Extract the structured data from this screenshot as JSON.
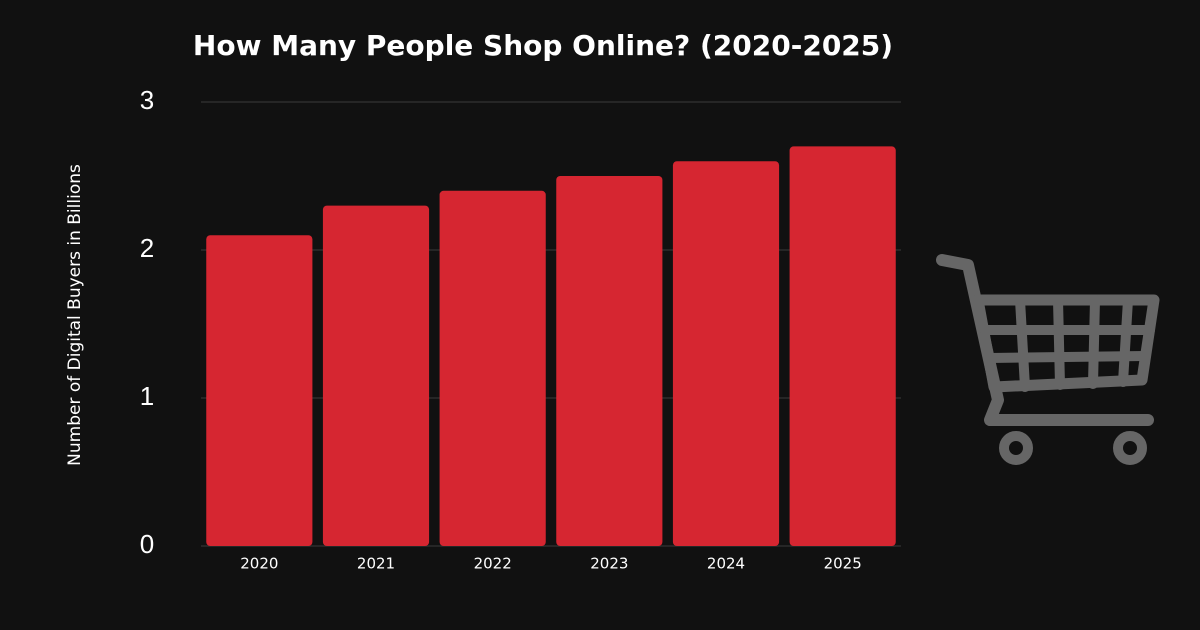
{
  "chart_data": {
    "type": "bar",
    "title": "How Many People Shop Online? (2020-2025)",
    "y_label": "Number of Digital Buyers in Billions",
    "categories": [
      "2020",
      "2021",
      "2022",
      "2023",
      "2024",
      "2025"
    ],
    "values": [
      2.1,
      2.3,
      2.4,
      2.5,
      2.6,
      2.7
    ],
    "color": "#d62631",
    "ylim": [
      0,
      3
    ],
    "yticks": [
      0,
      1,
      2,
      3
    ],
    "grid": true
  }
}
